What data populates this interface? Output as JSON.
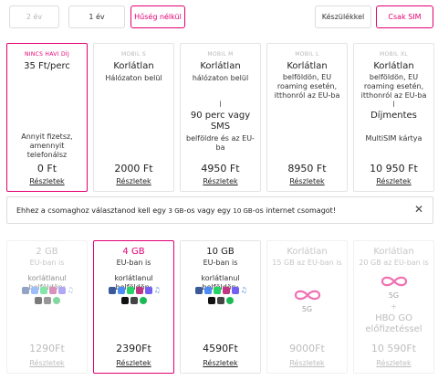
{
  "toggles": {
    "two_year": "2 év",
    "one_year": "1 év",
    "no_commitment": "Hűség nélkül",
    "with_devices": "Készülékkel",
    "sim_only": "Csak SIM"
  },
  "plans": [
    {
      "badge": "NINCS HAVI DÍJ",
      "title": "35 Ft/perc",
      "desc": "Annyit fizetsz, amennyit telefonálsz",
      "price": "0 Ft",
      "link": "Részletek"
    },
    {
      "badge": "MOBIL S",
      "title": "Korlátlan",
      "sub": "Hálózaton belül",
      "price": "2000 Ft",
      "link": "Részletek"
    },
    {
      "badge": "MOBIL M",
      "title": "Korlátlan",
      "sub": "hálózaton belül",
      "bar": "I",
      "extra": "90 perc vagy SMS",
      "extra_sub": "belföldre és az EU-ba",
      "price": "4950 Ft",
      "link": "Részletek"
    },
    {
      "badge": "MOBIL L",
      "title": "Korlátlan",
      "sub": "belföldön, EU roaming esetén, itthonról az EU-ba",
      "price": "8950 Ft",
      "link": "Részletek"
    },
    {
      "badge": "MOBIL XL",
      "title": "Korlátlan",
      "sub": "belföldön, EU roaming esetén, itthonról az EU-ba",
      "bar": "I",
      "extra": "Díjmentes",
      "extra_sub": "MultiSIM kártya",
      "price": "10 950 Ft",
      "link": "Részletek"
    }
  ],
  "notice": {
    "pre": "Ehhez a csomaghoz választanod kell egy ",
    "gb1": "3 GB",
    "mid": "-os vagy egy ",
    "gb2": "10 GB",
    "post": "-os internet csomagot!",
    "close": "✕"
  },
  "data_plans": [
    {
      "size": "2 GB",
      "sub": "EU-ban is",
      "desc": "korlátlanul belföldön:",
      "price": "1290Ft",
      "link": "Részletek"
    },
    {
      "size": "4 GB",
      "sub": "EU-ban is",
      "desc": "korlátlanul belföldön:",
      "price": "2390Ft",
      "link": "Részletek"
    },
    {
      "size": "10 GB",
      "sub": "EU-ban is",
      "desc": "korlátlanul belföldön:",
      "price": "4590Ft",
      "link": "Részletek"
    },
    {
      "size": "Korlátlan",
      "sub": "15 GB az EU-ban is",
      "badge5g": "5G",
      "price": "9000Ft",
      "link": "Részletek"
    },
    {
      "size": "Korlátlan",
      "sub": "20 GB az EU-ban is",
      "badge5g": "5G",
      "plus": "+",
      "extra": "HBO GO előfizetéssel",
      "price": "10 590Ft",
      "link": "Részletek"
    }
  ],
  "app_icons": [
    "facebook-icon",
    "messenger-icon",
    "whatsapp-icon",
    "instagram-icon",
    "viber-icon",
    "apple-music-icon"
  ],
  "app_icons_row2": [
    "tiktok-icon",
    "snapchat-icon",
    "spotify-icon"
  ],
  "colors": {
    "accent": "#e20074",
    "border": "#dcdcdc"
  }
}
